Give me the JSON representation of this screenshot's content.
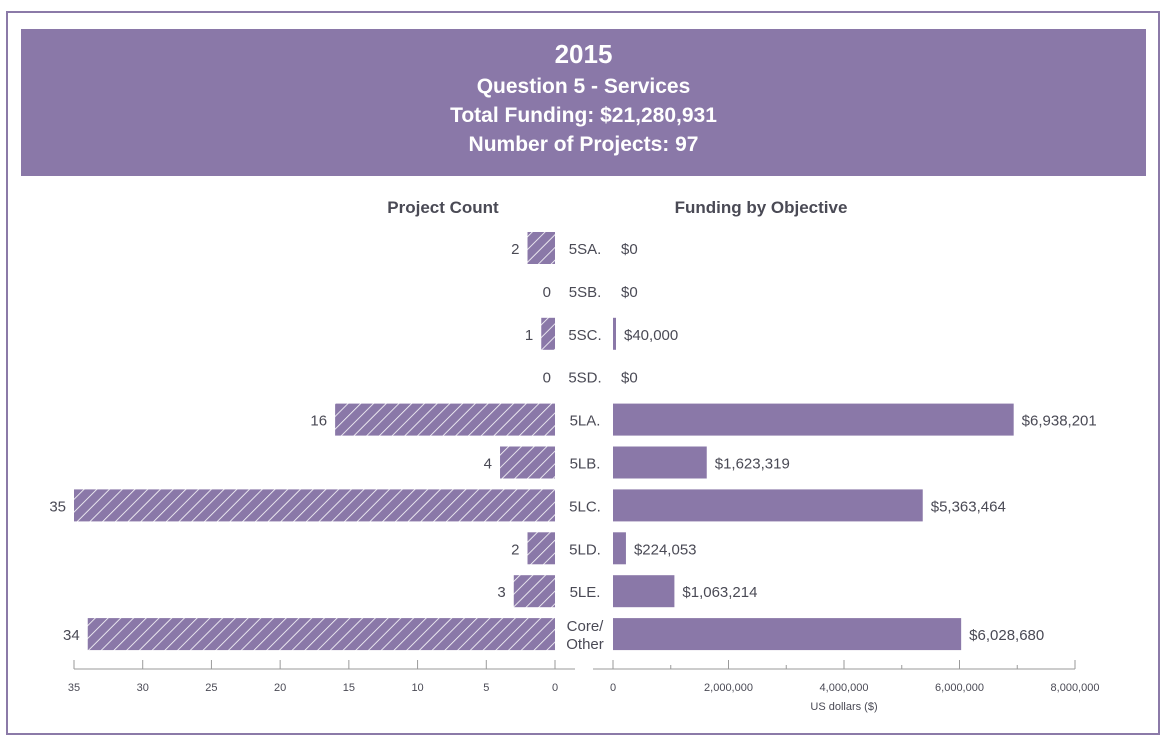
{
  "header": {
    "year": "2015",
    "question": "Question 5 - Services",
    "total_funding": "Total Funding: $21,280,931",
    "num_projects": "Number of Projects: 97"
  },
  "colors": {
    "accent": "#8a78a8",
    "text": "#4a4a55",
    "axis": "#9a9a9a"
  },
  "chart_data": [
    {
      "type": "bar",
      "orientation": "horizontal-left",
      "title": "Project Count",
      "categories": [
        "5SA.",
        "5SB.",
        "5SC.",
        "5SD.",
        "5LA.",
        "5LB.",
        "5LC.",
        "5LD.",
        "5LE.",
        "Core/ Other"
      ],
      "values": [
        2,
        0,
        1,
        0,
        16,
        4,
        35,
        2,
        3,
        34
      ],
      "data_labels": [
        "2",
        "0",
        "1",
        "0",
        "16",
        "4",
        "35",
        "2",
        "3",
        "34"
      ],
      "xlim": [
        0,
        35
      ],
      "ticks": [
        35,
        30,
        25,
        20,
        15,
        10,
        5,
        0
      ],
      "tick_labels": [
        "35",
        "30",
        "25",
        "20",
        "15",
        "10",
        "5",
        "0"
      ],
      "pattern": "hatched",
      "xlabel": ""
    },
    {
      "type": "bar",
      "orientation": "horizontal-right",
      "title": "Funding by Objective",
      "categories": [
        "5SA.",
        "5SB.",
        "5SC.",
        "5SD.",
        "5LA.",
        "5LB.",
        "5LC.",
        "5LD.",
        "5LE.",
        "Core/ Other"
      ],
      "values": [
        0,
        0,
        40000,
        0,
        6938201,
        1623319,
        5363464,
        224053,
        1063214,
        6028680
      ],
      "data_labels": [
        "$0",
        "$0",
        "$40,000",
        "$0",
        "$6,938,201",
        "$1,623,319",
        "$5,363,464",
        "$224,053",
        "$1,063,214",
        "$6,028,680"
      ],
      "xlim": [
        0,
        8000000
      ],
      "ticks": [
        0,
        2000000,
        4000000,
        6000000,
        8000000
      ],
      "minor_ticks": [
        1000000,
        3000000,
        5000000,
        7000000
      ],
      "tick_labels": [
        "0",
        "2,000,000",
        "4,000,000",
        "6,000,000",
        "8,000,000"
      ],
      "xlabel": "US dollars ($)"
    }
  ]
}
